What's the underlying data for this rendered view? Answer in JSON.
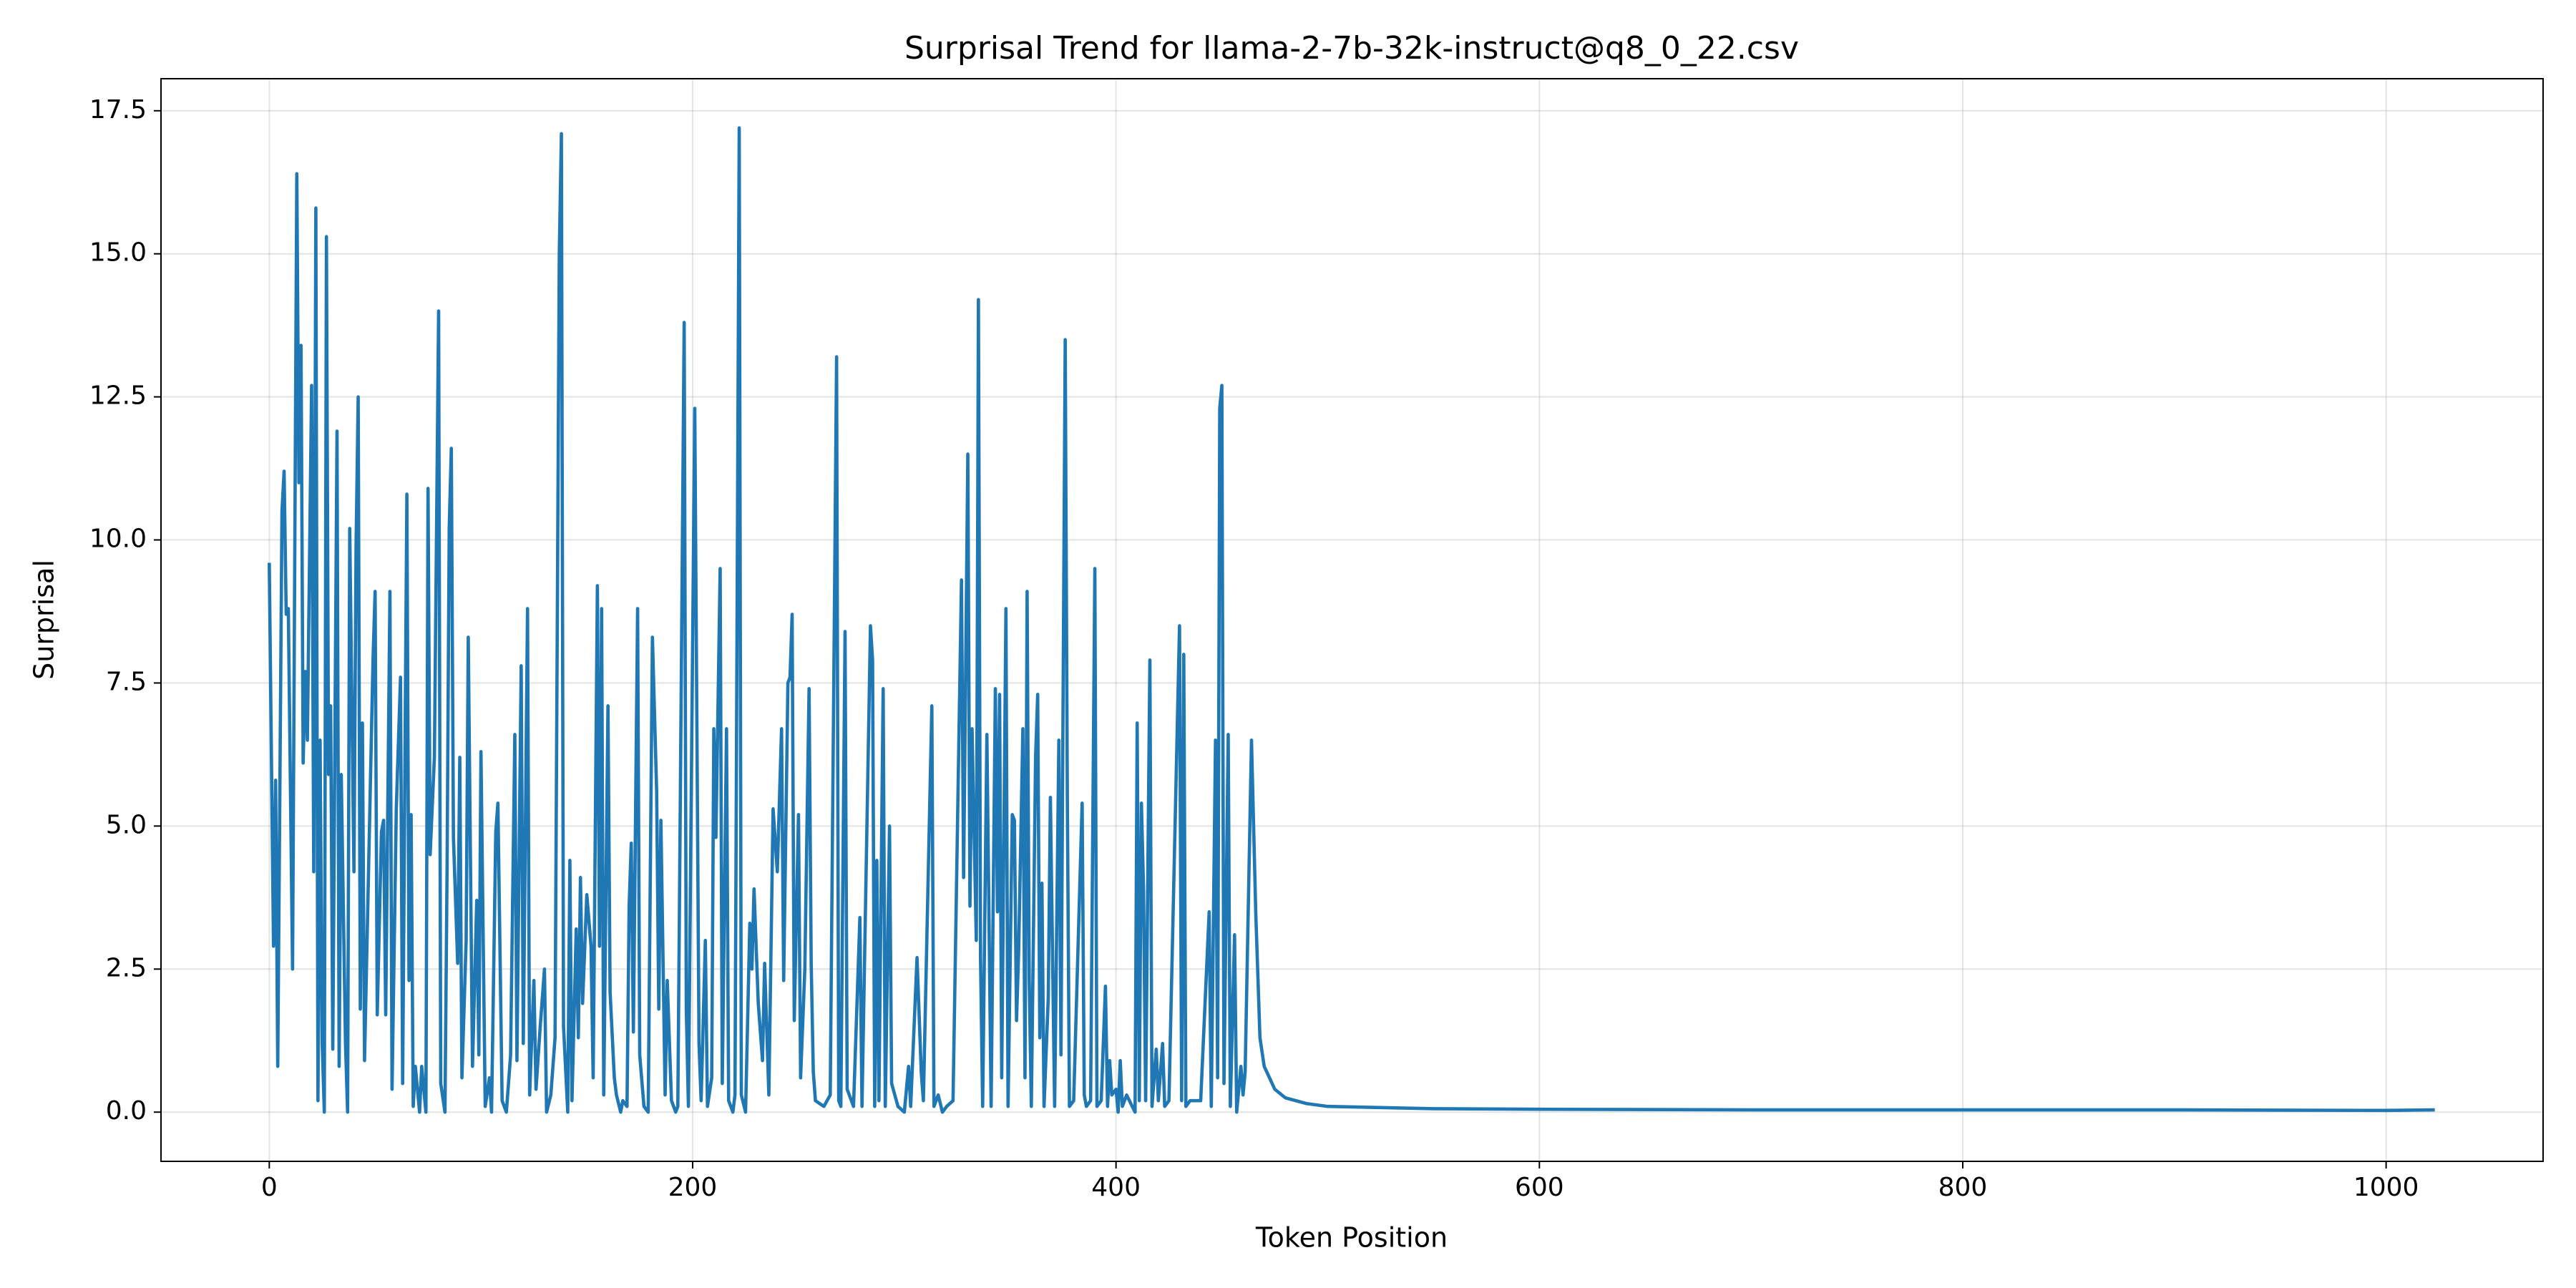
{
  "chart_data": {
    "type": "line",
    "title": "Surprisal Trend for llama-2-7b-32k-instruct@q8_0_22.csv",
    "x_label": "Token Position",
    "y_label": "Surprisal",
    "color": "#1f77b4",
    "grid": true,
    "xlim": [
      -51.15,
      1074.15
    ],
    "ylim": [
      -0.86,
      18.06
    ],
    "xticks": [
      0,
      200,
      400,
      600,
      800,
      1000
    ],
    "yticks": [
      {
        "value": 0,
        "label": "0.0"
      },
      2.5,
      {
        "value": 5,
        "label": "5.0"
      },
      7.5,
      {
        "value": 10,
        "label": "10.0"
      },
      12.5,
      {
        "value": 15,
        "label": "15.0"
      },
      17.5
    ],
    "x": [
      0,
      2,
      3,
      4,
      6,
      7,
      8,
      9,
      11,
      13,
      14,
      15,
      16,
      17,
      18,
      20,
      21,
      22,
      23,
      24,
      25,
      26,
      27,
      28,
      29,
      30,
      32,
      33,
      34,
      36,
      37,
      38,
      40,
      41,
      42,
      43,
      44,
      45,
      47,
      49,
      50,
      51,
      53,
      54,
      55,
      57,
      58,
      60,
      62,
      63,
      65,
      66,
      67,
      68,
      69,
      71,
      72,
      74,
      75,
      76,
      78,
      80,
      81,
      83,
      84,
      85,
      86,
      87,
      89,
      90,
      91,
      93,
      94,
      96,
      98,
      99,
      100,
      102,
      104,
      105,
      107,
      108,
      110,
      112,
      114,
      116,
      117,
      119,
      120,
      122,
      123,
      125,
      126,
      128,
      130,
      131,
      133,
      135,
      137,
      138,
      139,
      141,
      142,
      143,
      145,
      146,
      147,
      148,
      150,
      152,
      153,
      155,
      156,
      157,
      158,
      160,
      161,
      163,
      164,
      166,
      167,
      169,
      170,
      171,
      172,
      174,
      175,
      177,
      179,
      181,
      183,
      184,
      185,
      187,
      188,
      190,
      192,
      193,
      196,
      197,
      198,
      201,
      202,
      203,
      204,
      206,
      207,
      209,
      210,
      211,
      213,
      214,
      216,
      217,
      219,
      220,
      222,
      223,
      225,
      227,
      228,
      229,
      231,
      233,
      234,
      236,
      238,
      240,
      242,
      243,
      245,
      246,
      247,
      248,
      250,
      251,
      253,
      255,
      256,
      257,
      258,
      262,
      265,
      268,
      269,
      270,
      272,
      273,
      276,
      279,
      280,
      284,
      285,
      286,
      287,
      288,
      290,
      291,
      293,
      294,
      297,
      300,
      302,
      303,
      306,
      308,
      309,
      313,
      314,
      316,
      318,
      320,
      323,
      327,
      328,
      330,
      331,
      332,
      334,
      335,
      336,
      337,
      339,
      340,
      341,
      343,
      344,
      345,
      346,
      348,
      349,
      351,
      352,
      353,
      354,
      356,
      357,
      358,
      359,
      360,
      362,
      363,
      364,
      365,
      366,
      368,
      369,
      371,
      373,
      374,
      376,
      377,
      378,
      380,
      384,
      385,
      386,
      388,
      390,
      391,
      393,
      395,
      396,
      397,
      398,
      400,
      401,
      402,
      403,
      405,
      409,
      410,
      411,
      412,
      413,
      414,
      416,
      417,
      419,
      420,
      422,
      423,
      425,
      430,
      431,
      432,
      433,
      435,
      440,
      444,
      445,
      447,
      448,
      449,
      450,
      451,
      453,
      454,
      456,
      457,
      459,
      460,
      461,
      464,
      466,
      468,
      470,
      475,
      480,
      490,
      500,
      550,
      600,
      700,
      800,
      900,
      1000,
      1023
    ],
    "values": [
      9.6,
      2.9,
      5.8,
      0.8,
      10.5,
      11.2,
      8.7,
      8.8,
      2.5,
      16.4,
      11.0,
      13.4,
      6.1,
      7.7,
      6.5,
      12.7,
      4.2,
      15.8,
      0.2,
      6.5,
      1.2,
      0,
      15.3,
      5.9,
      7.1,
      1.1,
      11.9,
      0.8,
      5.9,
      1.2,
      0,
      10.2,
      4.2,
      9.9,
      12.5,
      1.8,
      6.8,
      0.9,
      4.4,
      7.9,
      9.1,
      1.7,
      4.9,
      5.1,
      1.7,
      9.1,
      0.4,
      5.3,
      7.6,
      0.5,
      10.8,
      2.3,
      5.2,
      0.1,
      0.8,
      0,
      0.8,
      0,
      10.9,
      4.5,
      6.2,
      14.0,
      0.5,
      0,
      4.3,
      10.2,
      11.6,
      4.8,
      2.6,
      6.2,
      0.6,
      3.0,
      8.3,
      0.8,
      3.7,
      1.0,
      6.3,
      0.1,
      0.6,
      0,
      4.9,
      5.4,
      0.2,
      0,
      1.0,
      6.6,
      0.9,
      7.8,
      1.2,
      8.8,
      0.3,
      2.3,
      0.4,
      1.5,
      2.5,
      0,
      0.3,
      1.3,
      15.0,
      17.1,
      1.5,
      0,
      4.4,
      0.2,
      3.2,
      1.3,
      4.1,
      1.9,
      3.8,
      2.9,
      0.6,
      9.2,
      2.9,
      8.8,
      0.3,
      7.1,
      2.1,
      0.6,
      0.3,
      0,
      0.2,
      0.1,
      3.6,
      4.7,
      1.4,
      8.8,
      1.0,
      0.1,
      0,
      8.3,
      5.6,
      1.8,
      5.1,
      0.3,
      2.3,
      0.2,
      0,
      0.1,
      13.8,
      1.8,
      0.1,
      12.3,
      6.8,
      1.2,
      0.2,
      3.0,
      0.1,
      0.6,
      6.7,
      4.8,
      9.5,
      0.5,
      6.7,
      0.2,
      0,
      0.3,
      17.2,
      0.3,
      0,
      3.3,
      2.5,
      3.9,
      1.9,
      0.9,
      2.6,
      0.3,
      5.3,
      4.2,
      6.7,
      2.3,
      7.5,
      7.6,
      8.7,
      1.6,
      5.2,
      0.6,
      2.5,
      7.4,
      2.6,
      0.7,
      0.2,
      0.1,
      0.3,
      13.2,
      0.2,
      0.1,
      8.4,
      0.4,
      0.1,
      3.4,
      0.1,
      8.5,
      7.9,
      0.1,
      4.4,
      0.2,
      7.4,
      0.1,
      5.0,
      0.5,
      0.1,
      0,
      0.8,
      0.1,
      2.7,
      0.7,
      0.2,
      7.1,
      0.1,
      0.3,
      0,
      0.1,
      0.2,
      9.3,
      4.1,
      11.5,
      3.6,
      6.7,
      3.0,
      14.2,
      2.7,
      0.1,
      6.6,
      3.4,
      0.1,
      7.4,
      3.5,
      7.3,
      0.6,
      8.8,
      0.1,
      5.2,
      5.1,
      1.6,
      2.8,
      6.7,
      0.6,
      9.1,
      2.3,
      0.1,
      6.2,
      7.3,
      1.3,
      4.0,
      0.1,
      2.0,
      5.5,
      0.1,
      6.5,
      1.0,
      13.5,
      5.5,
      0.1,
      0.2,
      5.4,
      0.3,
      0.1,
      0.2,
      9.5,
      0.1,
      0.2,
      2.2,
      0.1,
      0.9,
      0.3,
      0.4,
      0,
      0.9,
      0.1,
      0.3,
      0,
      6.8,
      0.2,
      5.4,
      3.9,
      0.2,
      7.9,
      0.1,
      1.1,
      0.2,
      1.2,
      0.1,
      0.2,
      8.5,
      0.2,
      8.0,
      0.1,
      0.2,
      0.2,
      3.5,
      0.1,
      6.5,
      0.6,
      12.3,
      12.7,
      0.5,
      6.6,
      0.1,
      3.1,
      0,
      0.8,
      0.3,
      0.7,
      6.5,
      3.5,
      1.3,
      0.8,
      0.4,
      0.25,
      0.15,
      0.1,
      0.06,
      0.05,
      0.04,
      0.04,
      0.04,
      0.03,
      0.04
    ]
  }
}
